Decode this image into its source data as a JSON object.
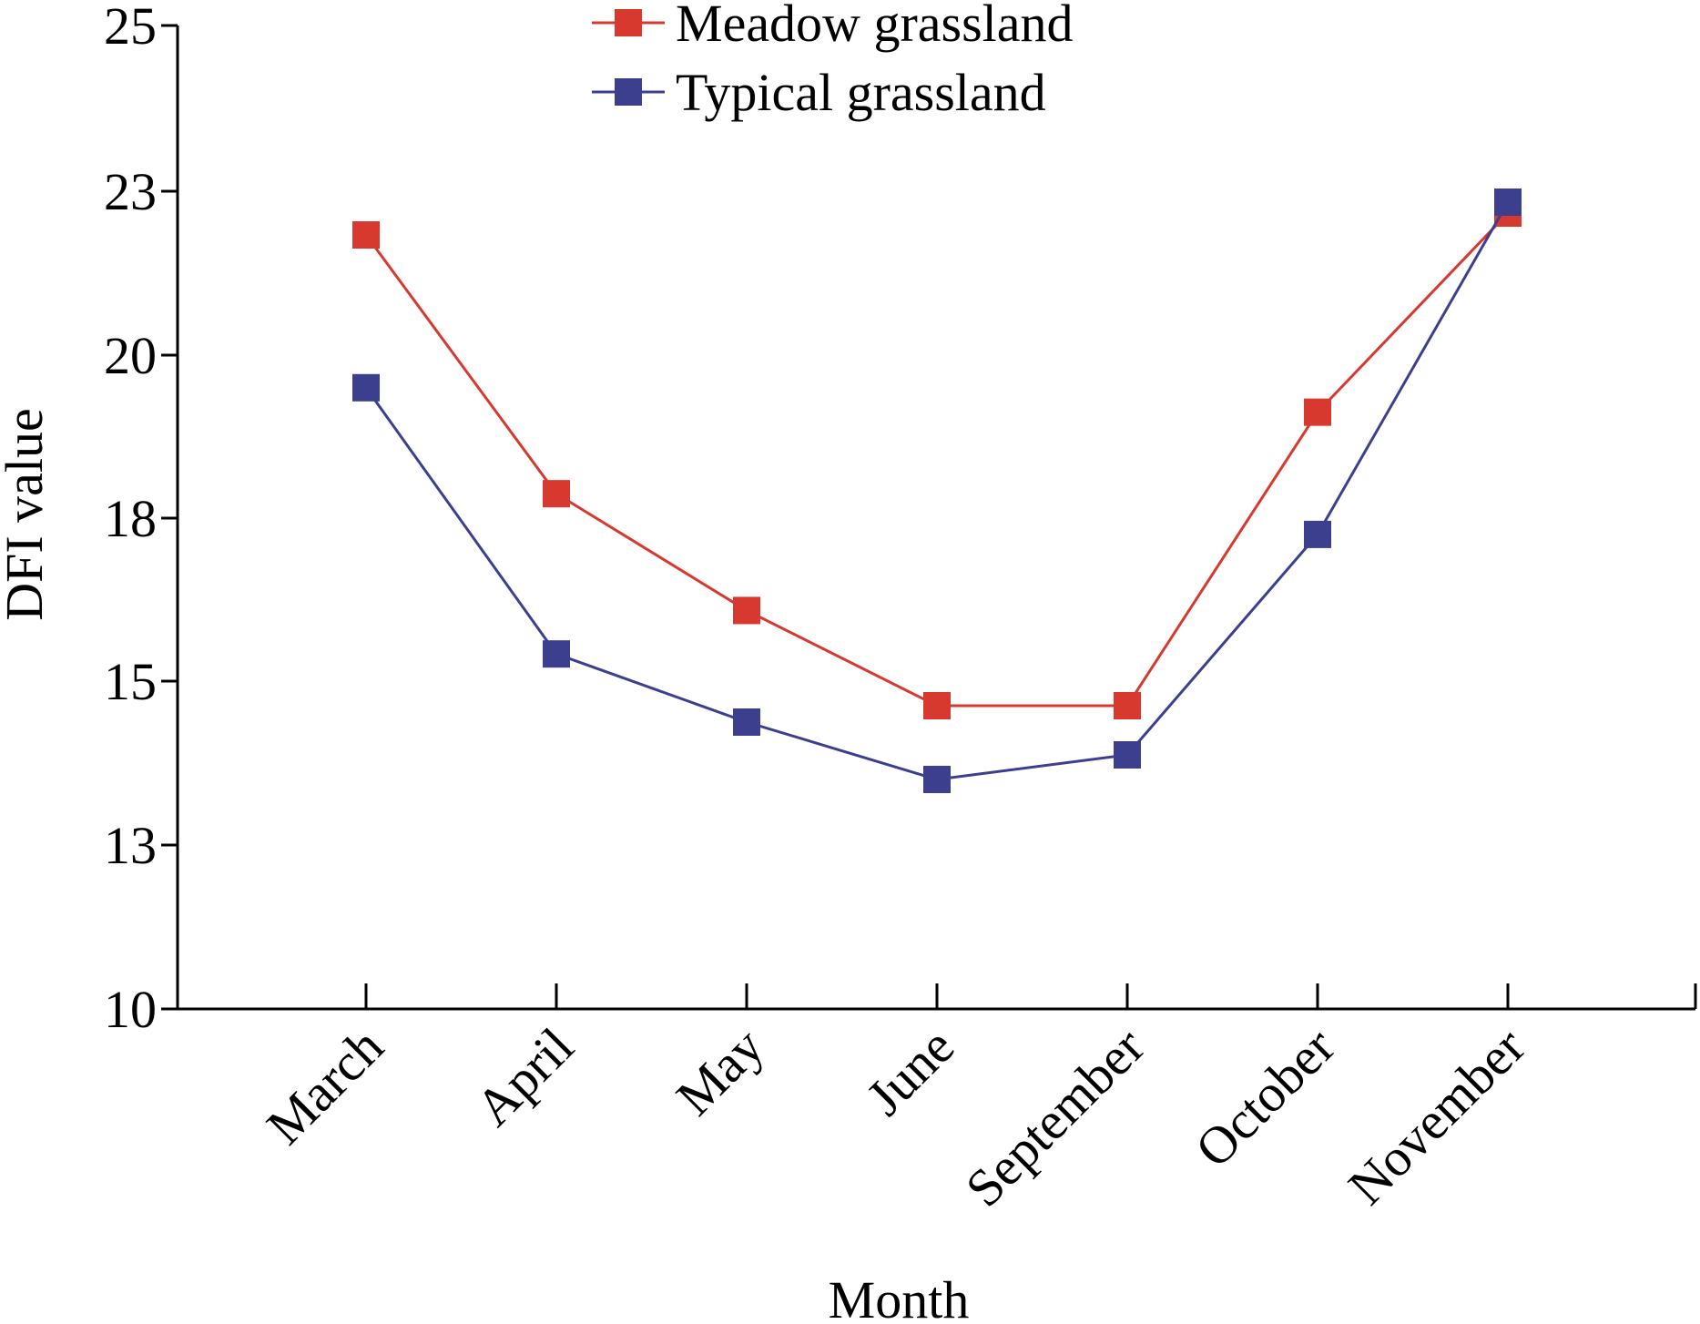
{
  "chart_data": {
    "type": "line",
    "xlabel": "Month",
    "ylabel": "DFI value",
    "categories": [
      "March",
      "April",
      "May",
      "June",
      "September",
      "October",
      "November"
    ],
    "yticks": [
      10,
      13,
      15,
      18,
      20,
      23,
      25
    ],
    "ylim": [
      10,
      25
    ],
    "legend_position": "top-center",
    "grid": false,
    "series": [
      {
        "name": "Meadow grassland",
        "color": "#d7392f",
        "marker": "square",
        "values": [
          22.2,
          18.3,
          16.3,
          14.7,
          14.7,
          19.3,
          22.6
        ]
      },
      {
        "name": "Typical grassland",
        "color": "#3c3f8e",
        "marker": "square",
        "values": [
          19.6,
          15.5,
          14.5,
          13.8,
          14.1,
          17.7,
          22.8
        ]
      }
    ]
  }
}
